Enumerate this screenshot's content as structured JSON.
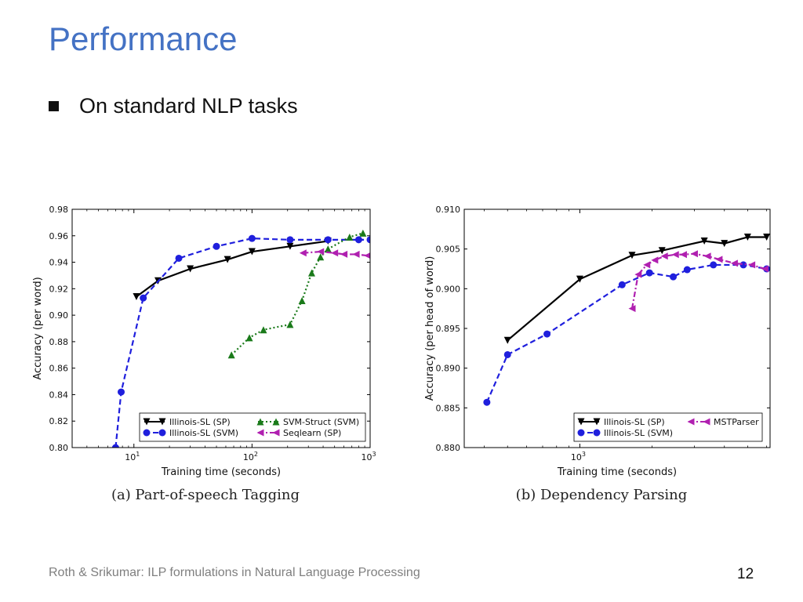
{
  "slide": {
    "title": "Performance",
    "bullet": "On standard NLP tasks",
    "footer": "Roth & Srikumar: ILP formulations in Natural Language Processing",
    "page_number": "12"
  },
  "chart_data": [
    {
      "id": "pos",
      "type": "line",
      "caption": "(a) Part-of-speech Tagging",
      "xlabel": "Training time (seconds)",
      "ylabel": "Accuracy (per word)",
      "xscale": "log",
      "xlim": [
        3,
        1000
      ],
      "ylim": [
        0.8,
        0.98
      ],
      "xticks": [
        {
          "v": 10,
          "b": "10",
          "e": "1"
        },
        {
          "v": 100,
          "b": "10",
          "e": "2"
        },
        {
          "v": 1000,
          "b": "10",
          "e": "3"
        }
      ],
      "yticks": [
        0.8,
        0.82,
        0.84,
        0.86,
        0.88,
        0.9,
        0.92,
        0.94,
        0.96,
        0.98
      ],
      "ytick_labels": [
        "0.80",
        "0.82",
        "0.84",
        "0.86",
        "0.88",
        "0.90",
        "0.92",
        "0.94",
        "0.96",
        "0.98"
      ],
      "legend_position": "bottom-right",
      "series": [
        {
          "name": "Illinois-SL (SP)",
          "color": "#000000",
          "marker": "triangle-down",
          "dash": "solid",
          "x": [
            10.5,
            16,
            30,
            62,
            100,
            210,
            440
          ],
          "y": [
            0.914,
            0.926,
            0.935,
            0.942,
            0.948,
            0.952,
            0.956
          ]
        },
        {
          "name": "Illinois-SL (SVM)",
          "color": "#1f1fdd",
          "marker": "circle",
          "dash": "dashed",
          "x": [
            7,
            7.8,
            12,
            24,
            50,
            100,
            210,
            440,
            800,
            1000
          ],
          "y": [
            0.8,
            0.842,
            0.913,
            0.943,
            0.952,
            0.958,
            0.957,
            0.957,
            0.957,
            0.957
          ]
        },
        {
          "name": "SVM-Struct (SVM)",
          "color": "#1a7a1a",
          "marker": "triangle-up",
          "dash": "dotted",
          "x": [
            67,
            95,
            125,
            210,
            265,
            320,
            380,
            440,
            670,
            870
          ],
          "y": [
            0.87,
            0.883,
            0.889,
            0.893,
            0.911,
            0.932,
            0.944,
            0.95,
            0.959,
            0.962
          ]
        },
        {
          "name": "Seqlearn (SP)",
          "color": "#b020b0",
          "marker": "triangle-left",
          "dash": "dashdot",
          "x": [
            270,
            380,
            500,
            600,
            760,
            950
          ],
          "y": [
            0.947,
            0.948,
            0.947,
            0.946,
            0.946,
            0.945
          ]
        }
      ]
    },
    {
      "id": "dep",
      "type": "line",
      "caption": "(b) Dependency Parsing",
      "xlabel": "Training time (seconds)",
      "ylabel": "Accuracy (per head of word)",
      "xscale": "log",
      "xlim": [
        330,
        6200
      ],
      "ylim": [
        0.88,
        0.91
      ],
      "xticks": [
        {
          "v": 1000,
          "b": "10",
          "e": "3"
        }
      ],
      "yticks": [
        0.88,
        0.885,
        0.89,
        0.895,
        0.9,
        0.905,
        0.91
      ],
      "ytick_labels": [
        "0.880",
        "0.885",
        "0.890",
        "0.895",
        "0.900",
        "0.905",
        "0.910"
      ],
      "legend_position": "bottom-right",
      "series": [
        {
          "name": "Illinois-SL (SP)",
          "color": "#000000",
          "marker": "triangle-down",
          "dash": "solid",
          "x": [
            500,
            1000,
            1650,
            2200,
            3300,
            4000,
            5000,
            6000
          ],
          "y": [
            0.8935,
            0.9012,
            0.9042,
            0.9048,
            0.906,
            0.9057,
            0.9065,
            0.9065
          ]
        },
        {
          "name": "Illinois-SL (SVM)",
          "color": "#1f1fdd",
          "marker": "circle",
          "dash": "dashed",
          "x": [
            410,
            500,
            730,
            1500,
            1950,
            2450,
            2800,
            3600,
            4800,
            6000
          ],
          "y": [
            0.8857,
            0.8917,
            0.8943,
            0.9005,
            0.902,
            0.9015,
            0.9024,
            0.903,
            0.903,
            0.9025
          ]
        },
        {
          "name": "MSTParser",
          "color": "#b020b0",
          "marker": "triangle-left",
          "dash": "dashdot",
          "x": [
            1650,
            1750,
            1900,
            2050,
            2250,
            2500,
            2700,
            3000,
            3400,
            3800,
            4400,
            5200,
            5900
          ],
          "y": [
            0.8975,
            0.9018,
            0.903,
            0.9036,
            0.9041,
            0.9043,
            0.9043,
            0.9044,
            0.9041,
            0.9037,
            0.9032,
            0.903,
            0.9025
          ]
        }
      ]
    }
  ]
}
